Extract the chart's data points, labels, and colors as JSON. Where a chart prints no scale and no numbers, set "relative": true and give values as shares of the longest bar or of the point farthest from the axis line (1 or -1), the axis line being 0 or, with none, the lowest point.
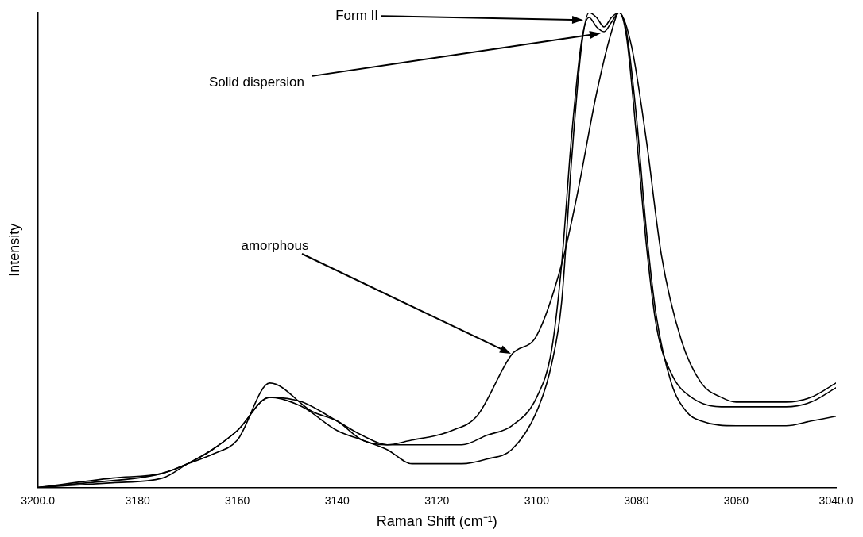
{
  "chart_data": {
    "type": "line",
    "relative": true,
    "xlabel": "Raman Shift (cm⁻¹)",
    "ylabel": "Intensity",
    "xlim": [
      3200,
      3040
    ],
    "xticks": [
      {
        "value": 3200,
        "label": "3200.0"
      },
      3180,
      3160,
      3140,
      3120,
      3100,
      3080,
      3060,
      {
        "value": 3040,
        "label": "3040.0"
      }
    ],
    "series": [
      {
        "color": "#000000",
        "x": [
          3200,
          3185,
          3175,
          3170,
          3165,
          3160,
          3153.5,
          3145,
          3140,
          3135,
          3130,
          3125,
          3120,
          3117,
          3112,
          3105,
          3100,
          3095,
          3092,
          3088,
          3085,
          3083.5,
          3081,
          3078,
          3075,
          3071,
          3067,
          3063,
          3060,
          3055,
          3050,
          3045,
          3040
        ],
        "values": [
          0,
          0.02,
          0.03,
          0.05,
          0.07,
          0.1,
          0.22,
          0.16,
          0.14,
          0.1,
          0.09,
          0.1,
          0.11,
          0.12,
          0.15,
          0.28,
          0.32,
          0.47,
          0.61,
          0.83,
          0.96,
          1.0,
          0.93,
          0.73,
          0.49,
          0.31,
          0.22,
          0.19,
          0.18,
          0.18,
          0.18,
          0.19,
          0.22
        ]
      },
      {
        "color": "#000000",
        "x": [
          3200,
          3190,
          3180,
          3175,
          3170,
          3165,
          3160,
          3153.5,
          3147,
          3140,
          3135,
          3130,
          3125,
          3120,
          3115,
          3110,
          3105,
          3100,
          3097,
          3095,
          3093,
          3091,
          3089.5,
          3088,
          3086.5,
          3085,
          3083.5,
          3082,
          3080,
          3078,
          3076,
          3073,
          3070,
          3067,
          3060,
          3050,
          3045,
          3040
        ],
        "values": [
          0,
          0.01,
          0.02,
          0.03,
          0.05,
          0.08,
          0.12,
          0.19,
          0.17,
          0.12,
          0.1,
          0.08,
          0.05,
          0.05,
          0.05,
          0.06,
          0.08,
          0.16,
          0.26,
          0.39,
          0.69,
          0.93,
          1.0,
          0.99,
          0.97,
          0.99,
          1.0,
          0.96,
          0.78,
          0.54,
          0.36,
          0.22,
          0.16,
          0.14,
          0.13,
          0.13,
          0.14,
          0.15
        ]
      },
      {
        "color": "#000000",
        "x": [
          3200,
          3185,
          3175,
          3170,
          3165,
          3160,
          3153.5,
          3147,
          3140,
          3135,
          3130,
          3125,
          3120,
          3115,
          3110,
          3105,
          3100,
          3097,
          3095,
          3093,
          3091,
          3089.5,
          3088,
          3086.5,
          3085,
          3083.5,
          3082,
          3080,
          3078,
          3076,
          3073,
          3069,
          3063,
          3058,
          3050,
          3045,
          3040
        ],
        "values": [
          0,
          0.01,
          0.02,
          0.05,
          0.08,
          0.12,
          0.19,
          0.18,
          0.14,
          0.11,
          0.09,
          0.09,
          0.09,
          0.09,
          0.11,
          0.13,
          0.19,
          0.29,
          0.47,
          0.74,
          0.94,
          0.99,
          0.97,
          0.96,
          0.98,
          1.0,
          0.95,
          0.74,
          0.51,
          0.34,
          0.24,
          0.19,
          0.17,
          0.17,
          0.17,
          0.18,
          0.21
        ]
      }
    ],
    "annotations": [
      "Form II",
      "Solid dispersion",
      "amorphous"
    ]
  }
}
